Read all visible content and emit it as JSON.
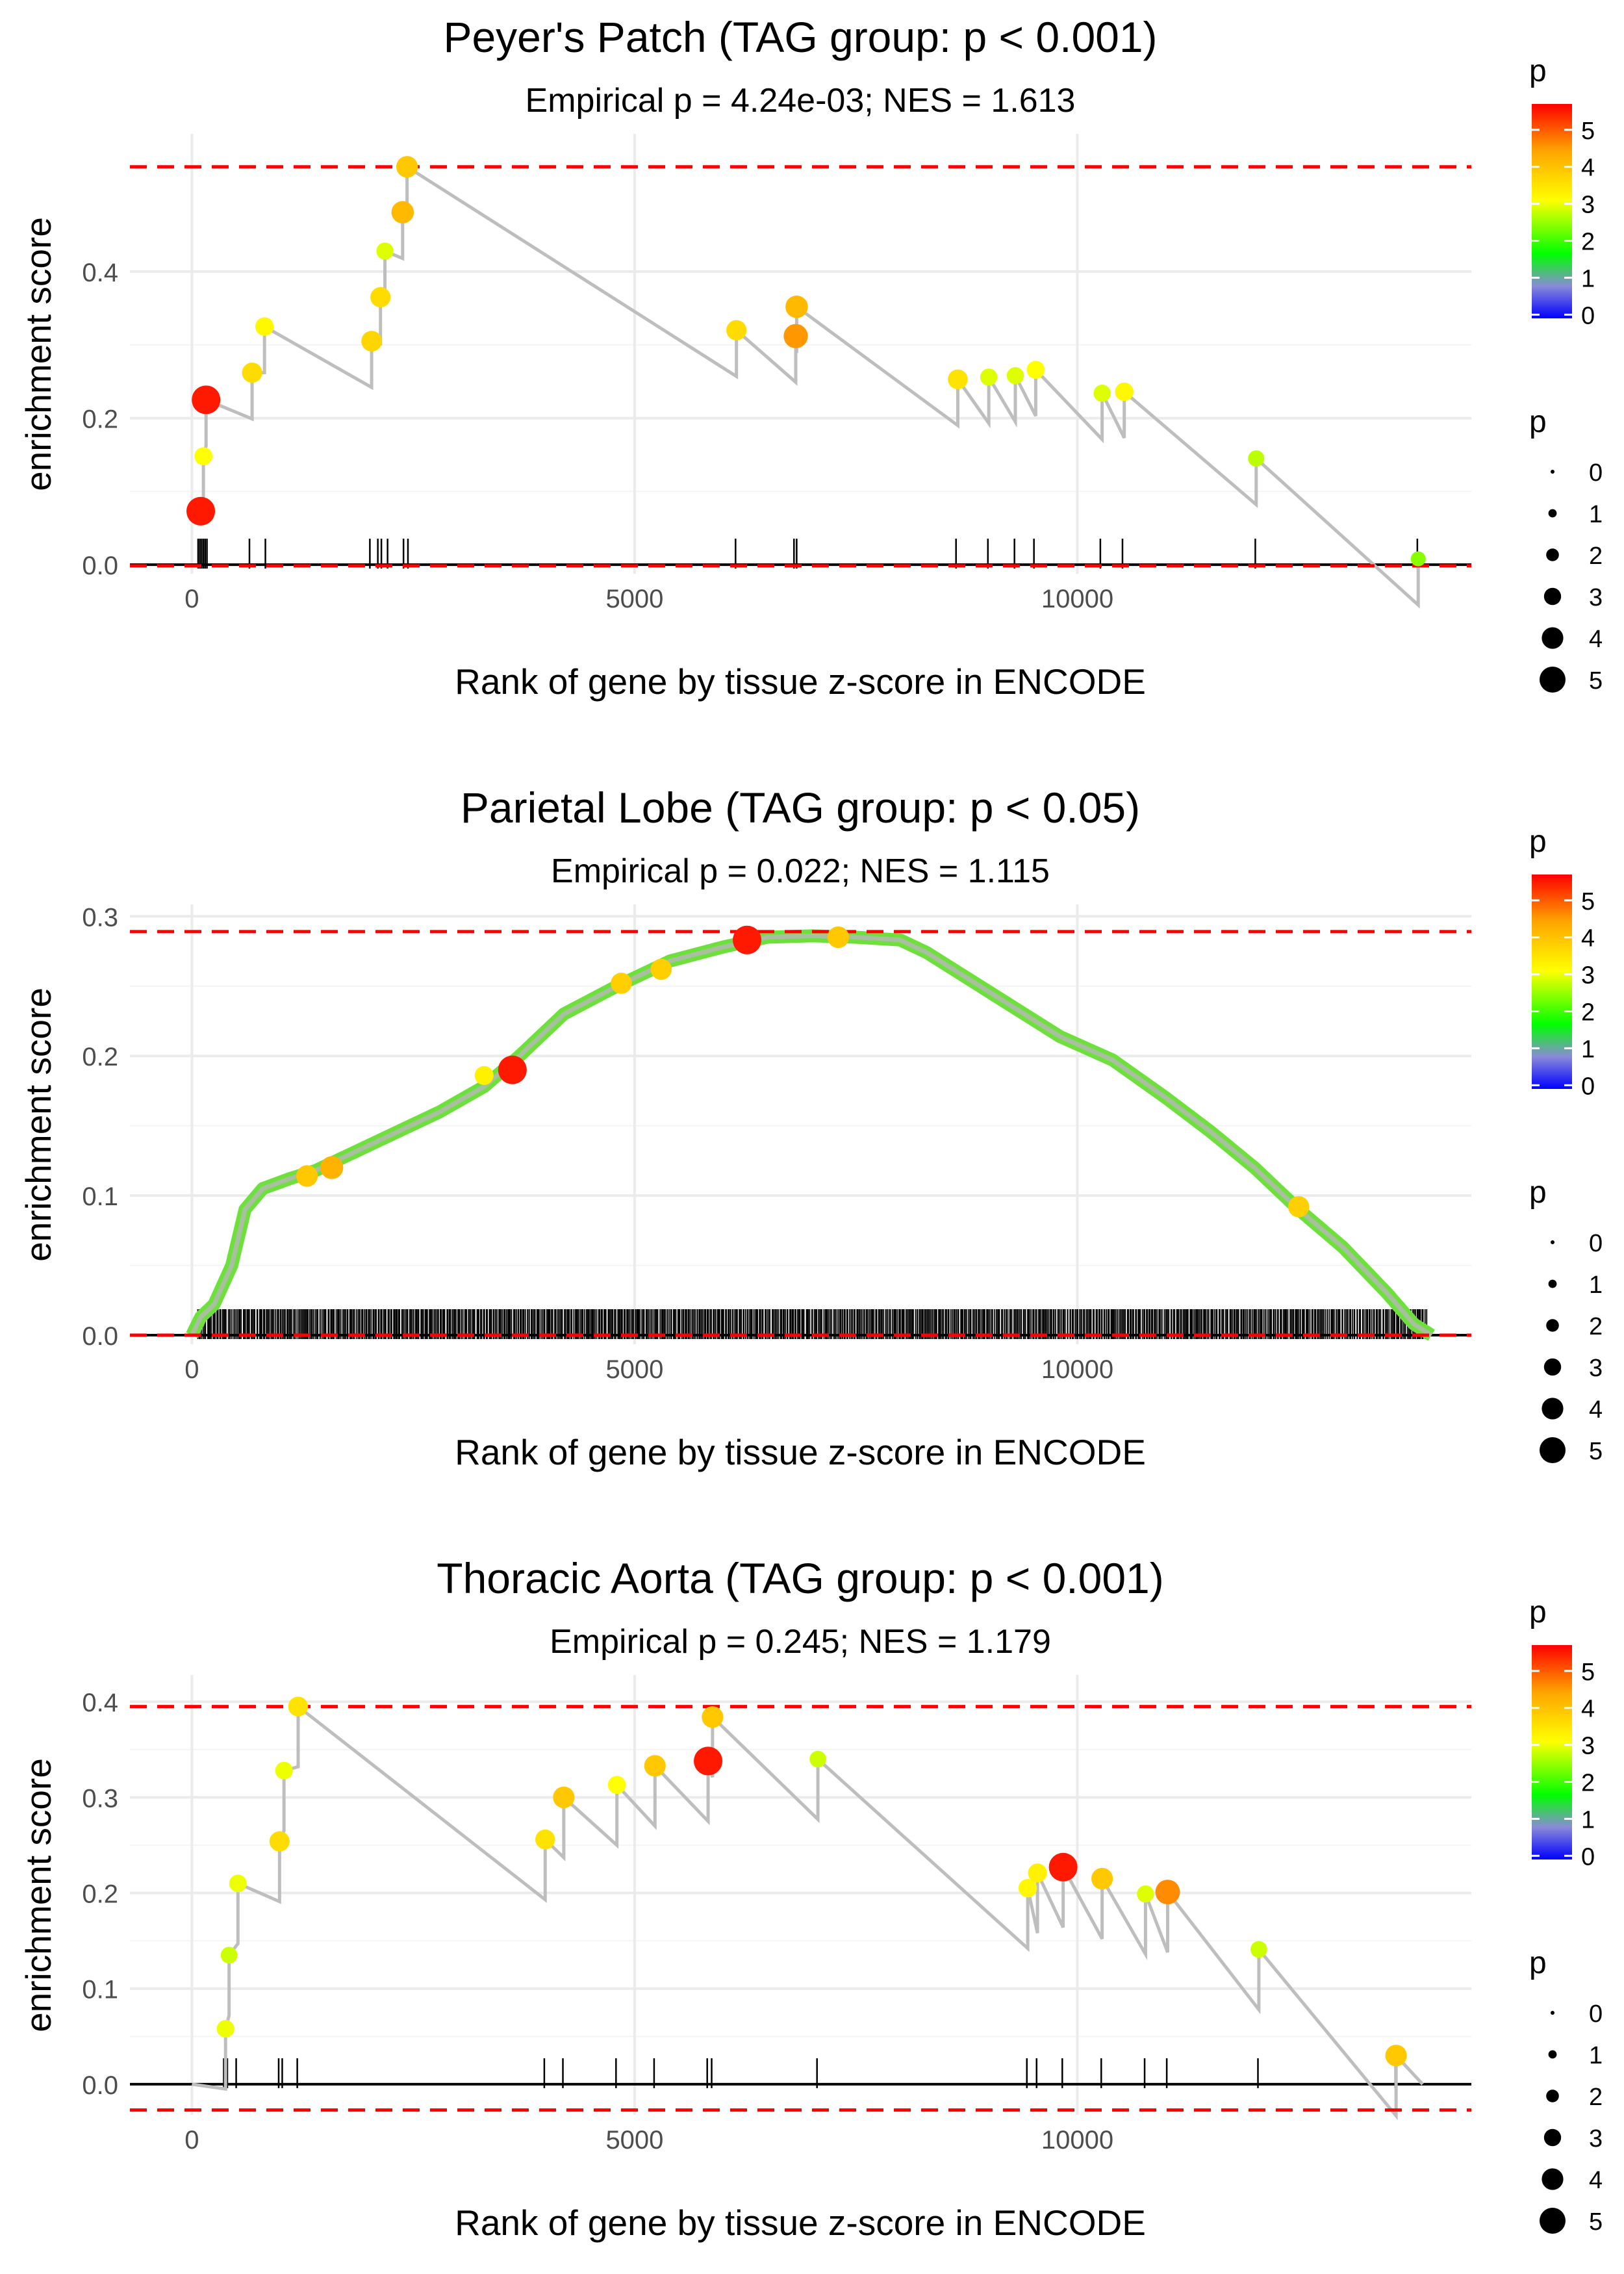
{
  "chart_data": [
    {
      "type": "line",
      "title": "Peyer's Patch (TAG group: p < 0.001)",
      "subtitle": "Empirical p = 4.24e-03; NES = 1.613",
      "xlabel": "Rank of gene by tissue z-score in ENCODE",
      "ylabel": "enrichment score",
      "xlim": [
        -700,
        14450
      ],
      "ylim": [
        -0.0123,
        0.588
      ],
      "xticks": [
        0,
        5000,
        10000
      ],
      "xtick_labels": [
        "0",
        "5000",
        "10000"
      ],
      "yticks": [
        0.0,
        0.2,
        0.4
      ],
      "ytick_labels": [
        "0.0",
        "0.2",
        "0.4"
      ],
      "dashed_lines": [
        0.543,
        -0.0015
      ],
      "points": [
        {
          "x": 100,
          "y": 0.073,
          "p": 5.6
        },
        {
          "x": 130,
          "y": 0.148,
          "p": 3.2
        },
        {
          "x": 160,
          "y": 0.225,
          "p": 5.6
        },
        {
          "x": 680,
          "y": 0.262,
          "p": 3.7
        },
        {
          "x": 820,
          "y": 0.325,
          "p": 3.3
        },
        {
          "x": 2030,
          "y": 0.305,
          "p": 3.8
        },
        {
          "x": 2130,
          "y": 0.365,
          "p": 3.7
        },
        {
          "x": 2180,
          "y": 0.428,
          "p": 3.0
        },
        {
          "x": 2380,
          "y": 0.481,
          "p": 4.2
        },
        {
          "x": 2430,
          "y": 0.543,
          "p": 4.0
        },
        {
          "x": 6150,
          "y": 0.32,
          "p": 3.7
        },
        {
          "x": 6820,
          "y": 0.312,
          "p": 4.6
        },
        {
          "x": 6830,
          "y": 0.352,
          "p": 4.2
        },
        {
          "x": 8650,
          "y": 0.253,
          "p": 3.6
        },
        {
          "x": 9000,
          "y": 0.256,
          "p": 3.0
        },
        {
          "x": 9300,
          "y": 0.258,
          "p": 3.0
        },
        {
          "x": 9530,
          "y": 0.266,
          "p": 3.2
        },
        {
          "x": 10280,
          "y": 0.234,
          "p": 3.0
        },
        {
          "x": 10530,
          "y": 0.236,
          "p": 3.3
        },
        {
          "x": 12020,
          "y": 0.145,
          "p": 2.8
        },
        {
          "x": 13850,
          "y": 0.008,
          "p": 2.5
        }
      ],
      "rug": [
        70,
        90,
        110,
        130,
        150,
        170,
        650,
        830,
        2010,
        2100,
        2140,
        2210,
        2390,
        2440,
        6140,
        6800,
        6830,
        8630,
        8990,
        9290,
        9510,
        10260,
        10510,
        12010,
        13840
      ],
      "legend": {
        "title": "p",
        "color_ticks": [
          "0",
          "1",
          "2",
          "3",
          "4",
          "5"
        ],
        "size_labels": [
          "0",
          "1",
          "2",
          "3",
          "4",
          "5"
        ]
      }
    },
    {
      "type": "line",
      "title": "Parietal Lobe (TAG group: p < 0.05)",
      "subtitle": "Empirical p = 0.022; NES = 1.115",
      "xlabel": "Rank of gene by tissue z-score in ENCODE",
      "ylabel": "enrichment score",
      "xlim": [
        -700,
        14450
      ],
      "ylim": [
        -0.0065,
        0.3085
      ],
      "xticks": [
        0,
        5000,
        10000
      ],
      "xtick_labels": [
        "0",
        "5000",
        "10000"
      ],
      "yticks": [
        0.0,
        0.1,
        0.2,
        0.3
      ],
      "ytick_labels": [
        "0.0",
        "0.1",
        "0.2",
        "0.3"
      ],
      "dashed_lines": [
        0.289,
        0.0
      ],
      "curve": [
        [
          0,
          0.0
        ],
        [
          100,
          0.013
        ],
        [
          250,
          0.022
        ],
        [
          450,
          0.05
        ],
        [
          600,
          0.09
        ],
        [
          800,
          0.105
        ],
        [
          1100,
          0.112
        ],
        [
          1400,
          0.118
        ],
        [
          1800,
          0.13
        ],
        [
          2300,
          0.145
        ],
        [
          2800,
          0.16
        ],
        [
          3300,
          0.178
        ],
        [
          3700,
          0.2
        ],
        [
          4200,
          0.23
        ],
        [
          4800,
          0.25
        ],
        [
          5400,
          0.268
        ],
        [
          6000,
          0.278
        ],
        [
          6500,
          0.285
        ],
        [
          7000,
          0.286
        ],
        [
          7500,
          0.285
        ],
        [
          8000,
          0.283
        ],
        [
          8300,
          0.274
        ],
        [
          8700,
          0.258
        ],
        [
          9200,
          0.238
        ],
        [
          9800,
          0.214
        ],
        [
          10400,
          0.197
        ],
        [
          11000,
          0.17
        ],
        [
          11500,
          0.146
        ],
        [
          12000,
          0.12
        ],
        [
          12500,
          0.09
        ],
        [
          13000,
          0.063
        ],
        [
          13500,
          0.03
        ],
        [
          13800,
          0.008
        ],
        [
          14000,
          0.0
        ]
      ],
      "highlighted_points": [
        {
          "x": 1300,
          "y": 0.114,
          "p": 4.0
        },
        {
          "x": 1580,
          "y": 0.12,
          "p": 4.3
        },
        {
          "x": 3300,
          "y": 0.186,
          "p": 3.4
        },
        {
          "x": 3620,
          "y": 0.19,
          "p": 5.6
        },
        {
          "x": 4850,
          "y": 0.252,
          "p": 3.9
        },
        {
          "x": 5300,
          "y": 0.262,
          "p": 3.9
        },
        {
          "x": 6270,
          "y": 0.283,
          "p": 5.6
        },
        {
          "x": 7300,
          "y": 0.285,
          "p": 4.0
        },
        {
          "x": 12500,
          "y": 0.092,
          "p": 3.9
        }
      ],
      "rug_range": [
        60,
        13950
      ],
      "legend": {
        "title": "p",
        "color_ticks": [
          "0",
          "1",
          "2",
          "3",
          "4",
          "5"
        ],
        "size_labels": [
          "0",
          "1",
          "2",
          "3",
          "4",
          "5"
        ]
      }
    },
    {
      "type": "line",
      "title": "Thoracic Aorta (TAG group: p < 0.001)",
      "subtitle": "Empirical p = 0.245; NES = 1.179",
      "xlabel": "Rank of gene by tissue z-score in ENCODE",
      "ylabel": "enrichment score",
      "xlim": [
        -700,
        14450
      ],
      "ylim": [
        -0.032,
        0.428
      ],
      "xticks": [
        0,
        5000,
        10000
      ],
      "xtick_labels": [
        "0",
        "5000",
        "10000"
      ],
      "yticks": [
        0.0,
        0.1,
        0.2,
        0.3,
        0.4
      ],
      "ytick_labels": [
        "0.0",
        "0.1",
        "0.2",
        "0.3",
        "0.4"
      ],
      "dashed_lines": [
        0.395,
        -0.027
      ],
      "points": [
        {
          "x": 0,
          "y": 0.0,
          "p": 0
        },
        {
          "x": 380,
          "y": 0.058,
          "p": 3.1
        },
        {
          "x": 420,
          "y": 0.135,
          "p": 2.9
        },
        {
          "x": 520,
          "y": 0.21,
          "p": 3.1
        },
        {
          "x": 990,
          "y": 0.254,
          "p": 3.7
        },
        {
          "x": 1040,
          "y": 0.328,
          "p": 3.1
        },
        {
          "x": 1200,
          "y": 0.395,
          "p": 3.6
        },
        {
          "x": 3990,
          "y": 0.256,
          "p": 3.6
        },
        {
          "x": 4200,
          "y": 0.3,
          "p": 4.0
        },
        {
          "x": 4800,
          "y": 0.313,
          "p": 3.2
        },
        {
          "x": 5230,
          "y": 0.333,
          "p": 4.0
        },
        {
          "x": 5830,
          "y": 0.338,
          "p": 5.6
        },
        {
          "x": 5880,
          "y": 0.384,
          "p": 4.0
        },
        {
          "x": 7070,
          "y": 0.34,
          "p": 2.9
        },
        {
          "x": 9440,
          "y": 0.205,
          "p": 3.3
        },
        {
          "x": 9550,
          "y": 0.221,
          "p": 3.4
        },
        {
          "x": 9840,
          "y": 0.227,
          "p": 5.6
        },
        {
          "x": 10280,
          "y": 0.215,
          "p": 4.0
        },
        {
          "x": 10770,
          "y": 0.199,
          "p": 3.0
        },
        {
          "x": 11020,
          "y": 0.201,
          "p": 4.7
        },
        {
          "x": 12050,
          "y": 0.141,
          "p": 2.9
        },
        {
          "x": 13600,
          "y": 0.03,
          "p": 4.0
        },
        {
          "x": 13900,
          "y": 0.0,
          "p": 0
        }
      ],
      "rug": [
        360,
        400,
        500,
        980,
        1020,
        1190,
        3980,
        4190,
        4790,
        5220,
        5820,
        5870,
        7060,
        9430,
        9540,
        9830,
        10270,
        10760,
        11010,
        12040,
        13590
      ],
      "legend": {
        "title": "p",
        "color_ticks": [
          "0",
          "1",
          "2",
          "3",
          "4",
          "5"
        ],
        "size_labels": [
          "0",
          "1",
          "2",
          "3",
          "4",
          "5"
        ]
      }
    }
  ],
  "colors": {
    "dashed": "#ff0000",
    "curve": "#bebebe",
    "grid": "#ebebeb",
    "axis_text": "#4d4d4d",
    "gradient": [
      "#0000ff",
      "#9b9bd3",
      "#00ff00",
      "#ffff00",
      "#ff9f00",
      "#ff0000"
    ]
  }
}
